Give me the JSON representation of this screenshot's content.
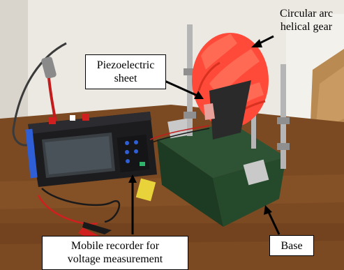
{
  "labels": {
    "piezo": "Piezoelectric\nsheet",
    "recorder": "Mobile recorder for\nvoltage measurement",
    "base": "Base",
    "gear": "Circular arc\nhelical gear"
  },
  "colors": {
    "gear": "#ff4a3a",
    "base": "#1f3a24",
    "recorder": "#1c1c1f",
    "recorder_trim": "#2f5fd6",
    "table": "#7a4a24",
    "wall": "#e9e7e0",
    "cable_red": "#d01f1f"
  }
}
